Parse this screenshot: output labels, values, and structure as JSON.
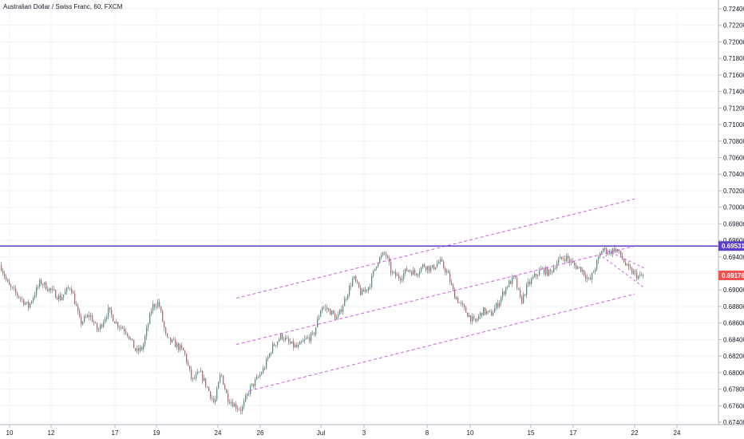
{
  "header": {
    "title": "Australian Dollar / Swiss Franc, 60, FXCM"
  },
  "price_tags": {
    "level": "0.69531",
    "last": "0.69176"
  },
  "colors": {
    "up": "#26a69a",
    "down": "#ef5350",
    "level_line": "#5b3fc8",
    "last_tag": "#ef5350",
    "channel": "#d35ae8"
  },
  "chart_data": {
    "type": "candlestick",
    "symbol": "Australian Dollar / Swiss Franc",
    "interval": "60",
    "source": "FXCM",
    "ylim": [
      0.674,
      0.725
    ],
    "y_ticks": [
      "0.72400",
      "0.72200",
      "0.72000",
      "0.71800",
      "0.71600",
      "0.71400",
      "0.71200",
      "0.71000",
      "0.70800",
      "0.70600",
      "0.70400",
      "0.70200",
      "0.70000",
      "0.69800",
      "0.69600",
      "0.69400",
      "0.69200",
      "0.69000",
      "0.68800",
      "0.68600",
      "0.68400",
      "0.68200",
      "0.68000",
      "0.67800",
      "0.67600",
      "0.67400"
    ],
    "x_ticks": [
      "10",
      "12",
      "17",
      "19",
      "24",
      "26",
      "Jul",
      "3",
      "8",
      "10",
      "15",
      "17",
      "22",
      "24"
    ],
    "horizontal_level": 0.69531,
    "last_price": 0.69176,
    "close_path": [
      [
        0,
        0.693
      ],
      [
        10,
        0.6905
      ],
      [
        20,
        0.6895
      ],
      [
        35,
        0.688
      ],
      [
        50,
        0.691
      ],
      [
        62,
        0.69
      ],
      [
        75,
        0.689
      ],
      [
        88,
        0.6905
      ],
      [
        100,
        0.686
      ],
      [
        112,
        0.687
      ],
      [
        122,
        0.685
      ],
      [
        135,
        0.6875
      ],
      [
        145,
        0.686
      ],
      [
        158,
        0.685
      ],
      [
        170,
        0.6825
      ],
      [
        178,
        0.683
      ],
      [
        190,
        0.688
      ],
      [
        198,
        0.6885
      ],
      [
        208,
        0.684
      ],
      [
        218,
        0.6835
      ],
      [
        230,
        0.6825
      ],
      [
        240,
        0.679
      ],
      [
        250,
        0.68
      ],
      [
        260,
        0.678
      ],
      [
        268,
        0.6762
      ],
      [
        276,
        0.68
      ],
      [
        284,
        0.677
      ],
      [
        294,
        0.676
      ],
      [
        302,
        0.6755
      ],
      [
        312,
        0.678
      ],
      [
        320,
        0.679
      ],
      [
        330,
        0.6805
      ],
      [
        340,
        0.683
      ],
      [
        352,
        0.6845
      ],
      [
        362,
        0.6835
      ],
      [
        372,
        0.683
      ],
      [
        382,
        0.684
      ],
      [
        392,
        0.6845
      ],
      [
        402,
        0.688
      ],
      [
        412,
        0.6875
      ],
      [
        422,
        0.6865
      ],
      [
        432,
        0.689
      ],
      [
        442,
        0.6915
      ],
      [
        452,
        0.6895
      ],
      [
        462,
        0.6905
      ],
      [
        472,
        0.6935
      ],
      [
        482,
        0.6945
      ],
      [
        490,
        0.692
      ],
      [
        500,
        0.6915
      ],
      [
        510,
        0.6925
      ],
      [
        520,
        0.692
      ],
      [
        530,
        0.693
      ],
      [
        540,
        0.6925
      ],
      [
        550,
        0.6935
      ],
      [
        560,
        0.692
      ],
      [
        568,
        0.6895
      ],
      [
        578,
        0.688
      ],
      [
        586,
        0.687
      ],
      [
        594,
        0.686
      ],
      [
        604,
        0.6875
      ],
      [
        614,
        0.687
      ],
      [
        624,
        0.6885
      ],
      [
        634,
        0.6905
      ],
      [
        644,
        0.6915
      ],
      [
        652,
        0.6885
      ],
      [
        660,
        0.6905
      ],
      [
        668,
        0.6915
      ],
      [
        678,
        0.6925
      ],
      [
        688,
        0.692
      ],
      [
        698,
        0.6935
      ],
      [
        708,
        0.694
      ],
      [
        718,
        0.693
      ],
      [
        728,
        0.6925
      ],
      [
        738,
        0.691
      ],
      [
        746,
        0.693
      ],
      [
        754,
        0.695
      ],
      [
        762,
        0.6945
      ],
      [
        770,
        0.695
      ],
      [
        778,
        0.694
      ],
      [
        786,
        0.6925
      ],
      [
        794,
        0.692
      ],
      [
        800,
        0.6915
      ],
      [
        806,
        0.6918
      ]
    ],
    "channels": [
      {
        "from": [
          0.689,
          296
        ],
        "to": [
          0.701,
          795
        ]
      },
      {
        "from": [
          0.6834,
          296
        ],
        "to": [
          0.6953,
          795
        ]
      },
      {
        "from": [
          0.6778,
          312
        ],
        "to": [
          0.6895,
          795
        ]
      }
    ],
    "wedge": [
      {
        "from": [
          0.695,
          755
        ],
        "to": [
          0.6926,
          808
        ]
      },
      {
        "from": [
          0.694,
          755
        ],
        "to": [
          0.6902,
          808
        ]
      }
    ]
  }
}
